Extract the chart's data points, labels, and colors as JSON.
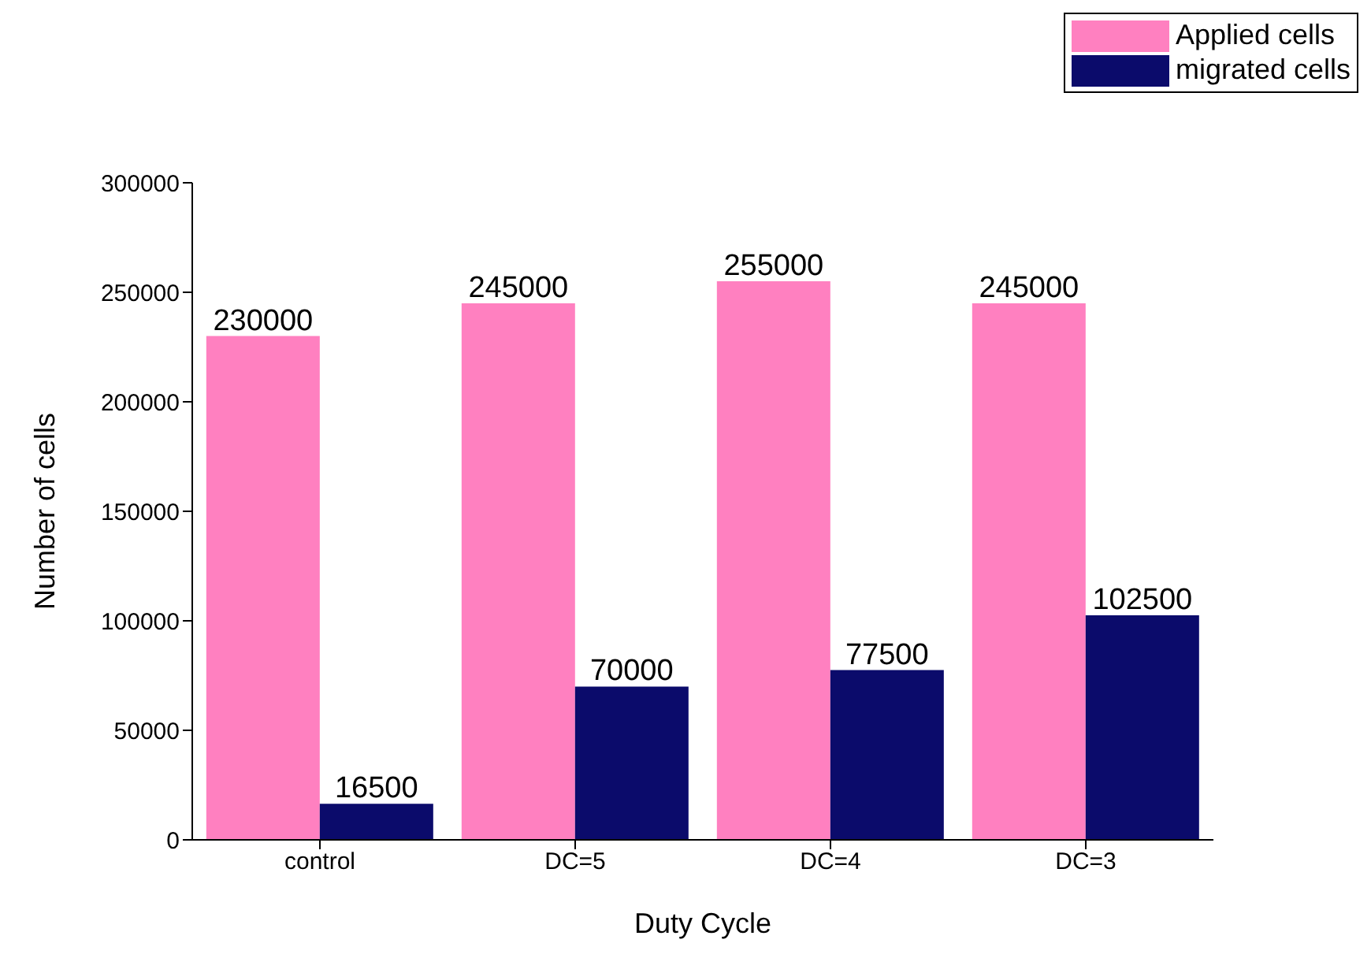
{
  "chart_data": {
    "type": "bar",
    "xlabel": "Duty Cycle",
    "ylabel": "Number of cells",
    "categories": [
      "control",
      "DC=5",
      "DC=4",
      "DC=3"
    ],
    "series": [
      {
        "name": "Applied cells",
        "color": "#ff80c0",
        "values": [
          230000,
          245000,
          255000,
          245000
        ]
      },
      {
        "name": "migrated cells",
        "color": "#0b0b6b",
        "values": [
          16500,
          70000,
          77500,
          102500
        ]
      }
    ],
    "ylim": [
      0,
      300000
    ],
    "yticks": [
      0,
      50000,
      100000,
      150000,
      200000,
      250000,
      300000
    ],
    "data_labels": true,
    "grid": false,
    "legend": "top right"
  }
}
